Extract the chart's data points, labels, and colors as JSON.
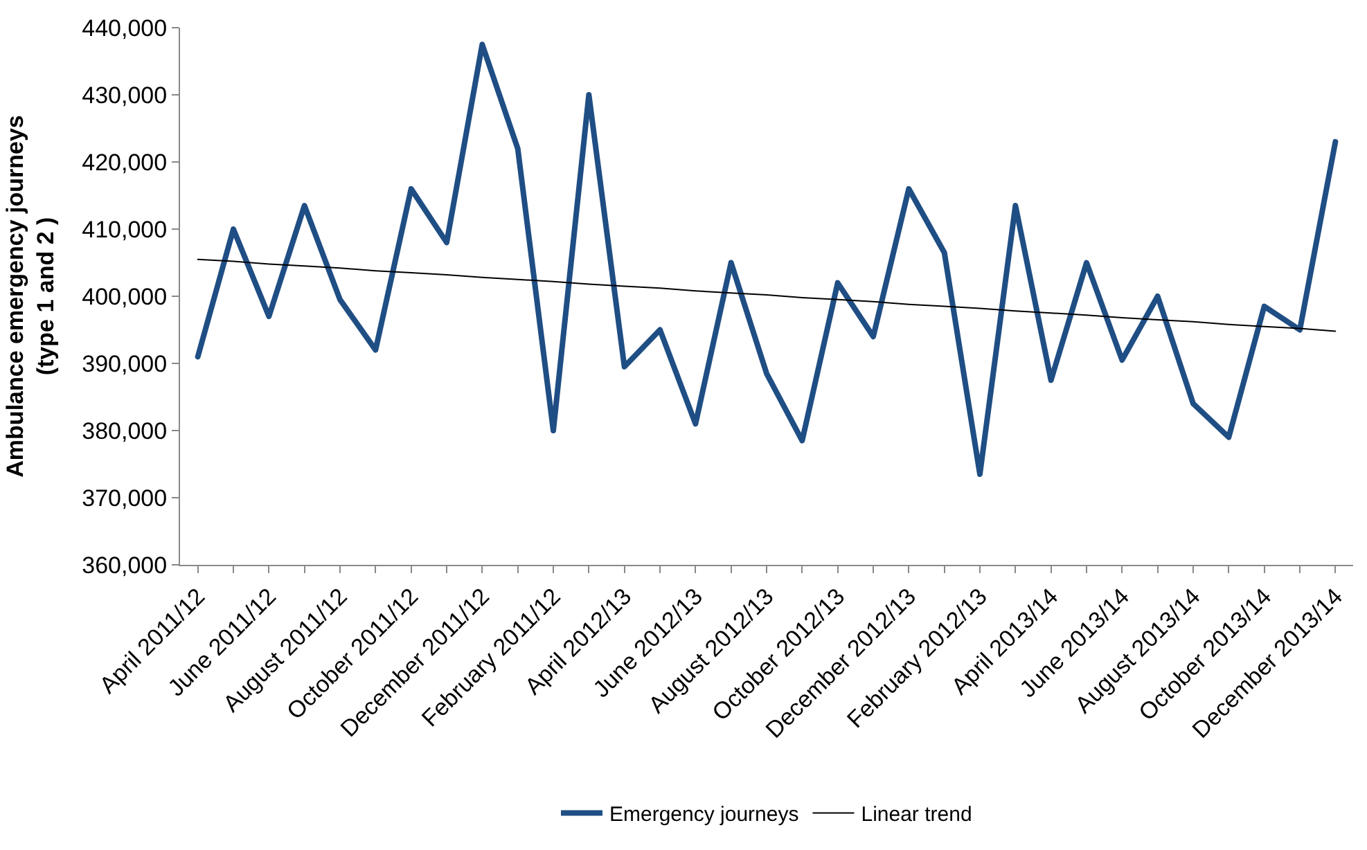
{
  "chart_data": {
    "type": "line",
    "ylabel": "Ambulance emergency journeys\n(type 1 and 2 )",
    "categories": [
      "April 2011/12",
      null,
      "June 2011/12",
      null,
      "August 2011/12",
      null,
      "October 2011/12",
      null,
      "December 2011/12",
      null,
      "February 2011/12",
      null,
      "April 2012/13",
      null,
      "June 2012/13",
      null,
      "August 2012/13",
      null,
      "October 2012/13",
      null,
      "December 2012/13",
      null,
      "February 2012/13",
      null,
      "April 2013/14",
      null,
      "June 2013/14",
      null,
      "August 2013/14",
      null,
      "October 2013/14",
      null,
      "December 2013/14"
    ],
    "series": [
      {
        "name": "Emergency journeys",
        "color": "#1f4e84",
        "values": [
          391000,
          410000,
          397000,
          413500,
          399500,
          392000,
          416000,
          408000,
          437500,
          422000,
          380000,
          430000,
          389500,
          395000,
          381000,
          405000,
          388500,
          378500,
          402000,
          394000,
          416000,
          406500,
          373500,
          413500,
          387500,
          405000,
          390500,
          400000,
          384000,
          379000,
          398500,
          395000,
          423000
        ]
      },
      {
        "name": "Linear trend",
        "color": "#000000",
        "values": [
          405500,
          405200,
          404800,
          404500,
          404200,
          403800,
          403500,
          403200,
          402800,
          402500,
          402200,
          401800,
          401500,
          401200,
          400800,
          400500,
          400200,
          399800,
          399500,
          399200,
          398800,
          398500,
          398200,
          397800,
          397500,
          397200,
          396800,
          396500,
          396200,
          395800,
          395500,
          395200,
          394800
        ]
      }
    ],
    "ylim": [
      360000,
      440000
    ],
    "yticks": [
      {
        "value": 360000,
        "label": "360,000"
      },
      {
        "value": 370000,
        "label": "370,000"
      },
      {
        "value": 380000,
        "label": "380,000"
      },
      {
        "value": 390000,
        "label": "390,000"
      },
      {
        "value": 400000,
        "label": "400,000"
      },
      {
        "value": 410000,
        "label": "410,000"
      },
      {
        "value": 420000,
        "label": "420,000"
      },
      {
        "value": 430000,
        "label": "430,000"
      },
      {
        "value": 440000,
        "label": "440,000"
      }
    ],
    "legend": "bottom",
    "marker": "none",
    "line_style": "solid"
  }
}
